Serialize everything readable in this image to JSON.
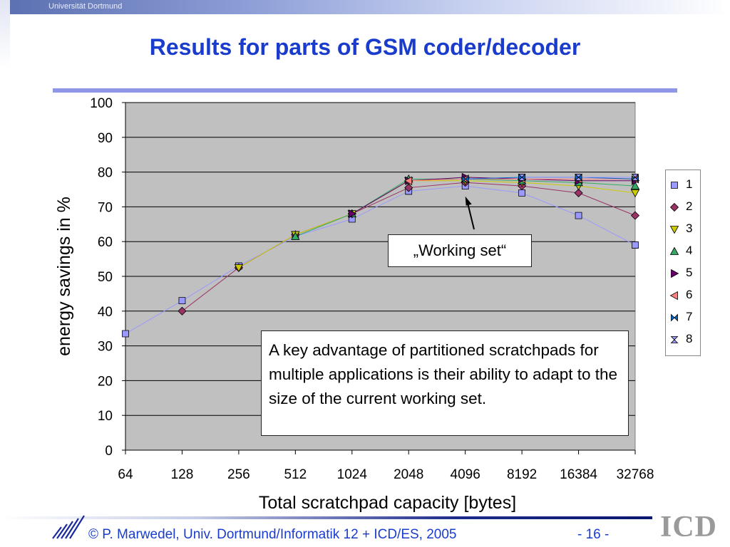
{
  "header": {
    "institution": "Universität Dortmund"
  },
  "slide": {
    "title": "Results for parts of GSM coder/decoder"
  },
  "chart_data": {
    "type": "line",
    "title": "",
    "xlabel": "Total scratchpad capacity [bytes]",
    "ylabel": "energy savings in %",
    "ylim": [
      0,
      100
    ],
    "yticks": [
      0,
      10,
      20,
      30,
      40,
      50,
      60,
      70,
      80,
      90,
      100
    ],
    "categories": [
      "64",
      "128",
      "256",
      "512",
      "1024",
      "2048",
      "4096",
      "8192",
      "16384",
      "32768"
    ],
    "grid": true,
    "legend_position": "right",
    "series": [
      {
        "name": "1",
        "color": "#9999ff",
        "marker": "square",
        "values": [
          33.5,
          43,
          53,
          61.5,
          66.5,
          74.5,
          76,
          74,
          67.5,
          59
        ]
      },
      {
        "name": "2",
        "color": "#993366",
        "marker": "diamond",
        "values": [
          null,
          40,
          52.5,
          62,
          68,
          75.5,
          77,
          76,
          74,
          67.5
        ]
      },
      {
        "name": "3",
        "color": "#cccc00",
        "marker": "triangle-down",
        "values": [
          null,
          null,
          52.5,
          62,
          68,
          77.5,
          77.5,
          77,
          76,
          74
        ]
      },
      {
        "name": "4",
        "color": "#33aa66",
        "marker": "triangle-up",
        "values": [
          null,
          null,
          null,
          61.5,
          68,
          78,
          78,
          77.5,
          77,
          76
        ]
      },
      {
        "name": "5",
        "color": "#660066",
        "marker": "triangle-right",
        "values": [
          null,
          null,
          null,
          null,
          68,
          77.5,
          78.5,
          78,
          77.5,
          77.5
        ]
      },
      {
        "name": "6",
        "color": "#ff8080",
        "marker": "triangle-left",
        "values": [
          null,
          null,
          null,
          null,
          null,
          77.5,
          78,
          78,
          78,
          78
        ]
      },
      {
        "name": "7",
        "color": "#0066cc",
        "marker": "bowtie",
        "values": [
          null,
          null,
          null,
          null,
          null,
          null,
          78,
          78.5,
          78.5,
          78
        ]
      },
      {
        "name": "8",
        "color": "#9999ff",
        "marker": "hourglass",
        "values": [
          null,
          null,
          null,
          null,
          null,
          null,
          null,
          78.5,
          78.5,
          78.5
        ]
      }
    ],
    "annotations": [
      {
        "text": "„Working set“",
        "arrow_to": {
          "x": "4096",
          "y": 73
        }
      },
      {
        "text": "A key advantage of partitioned scratchpads for multiple applications is their ability to adapt to the size of the current working set."
      }
    ]
  },
  "footer": {
    "copyright": "© P. Marwedel, Univ. Dortmund/Informatik 12 + ICD/ES, 2005",
    "page": "-  16 -",
    "logo_text": "ICD"
  },
  "colors": {
    "title": "#1a3ccc",
    "plot_background": "#c0c0c0",
    "rule": "#8f96e6"
  }
}
